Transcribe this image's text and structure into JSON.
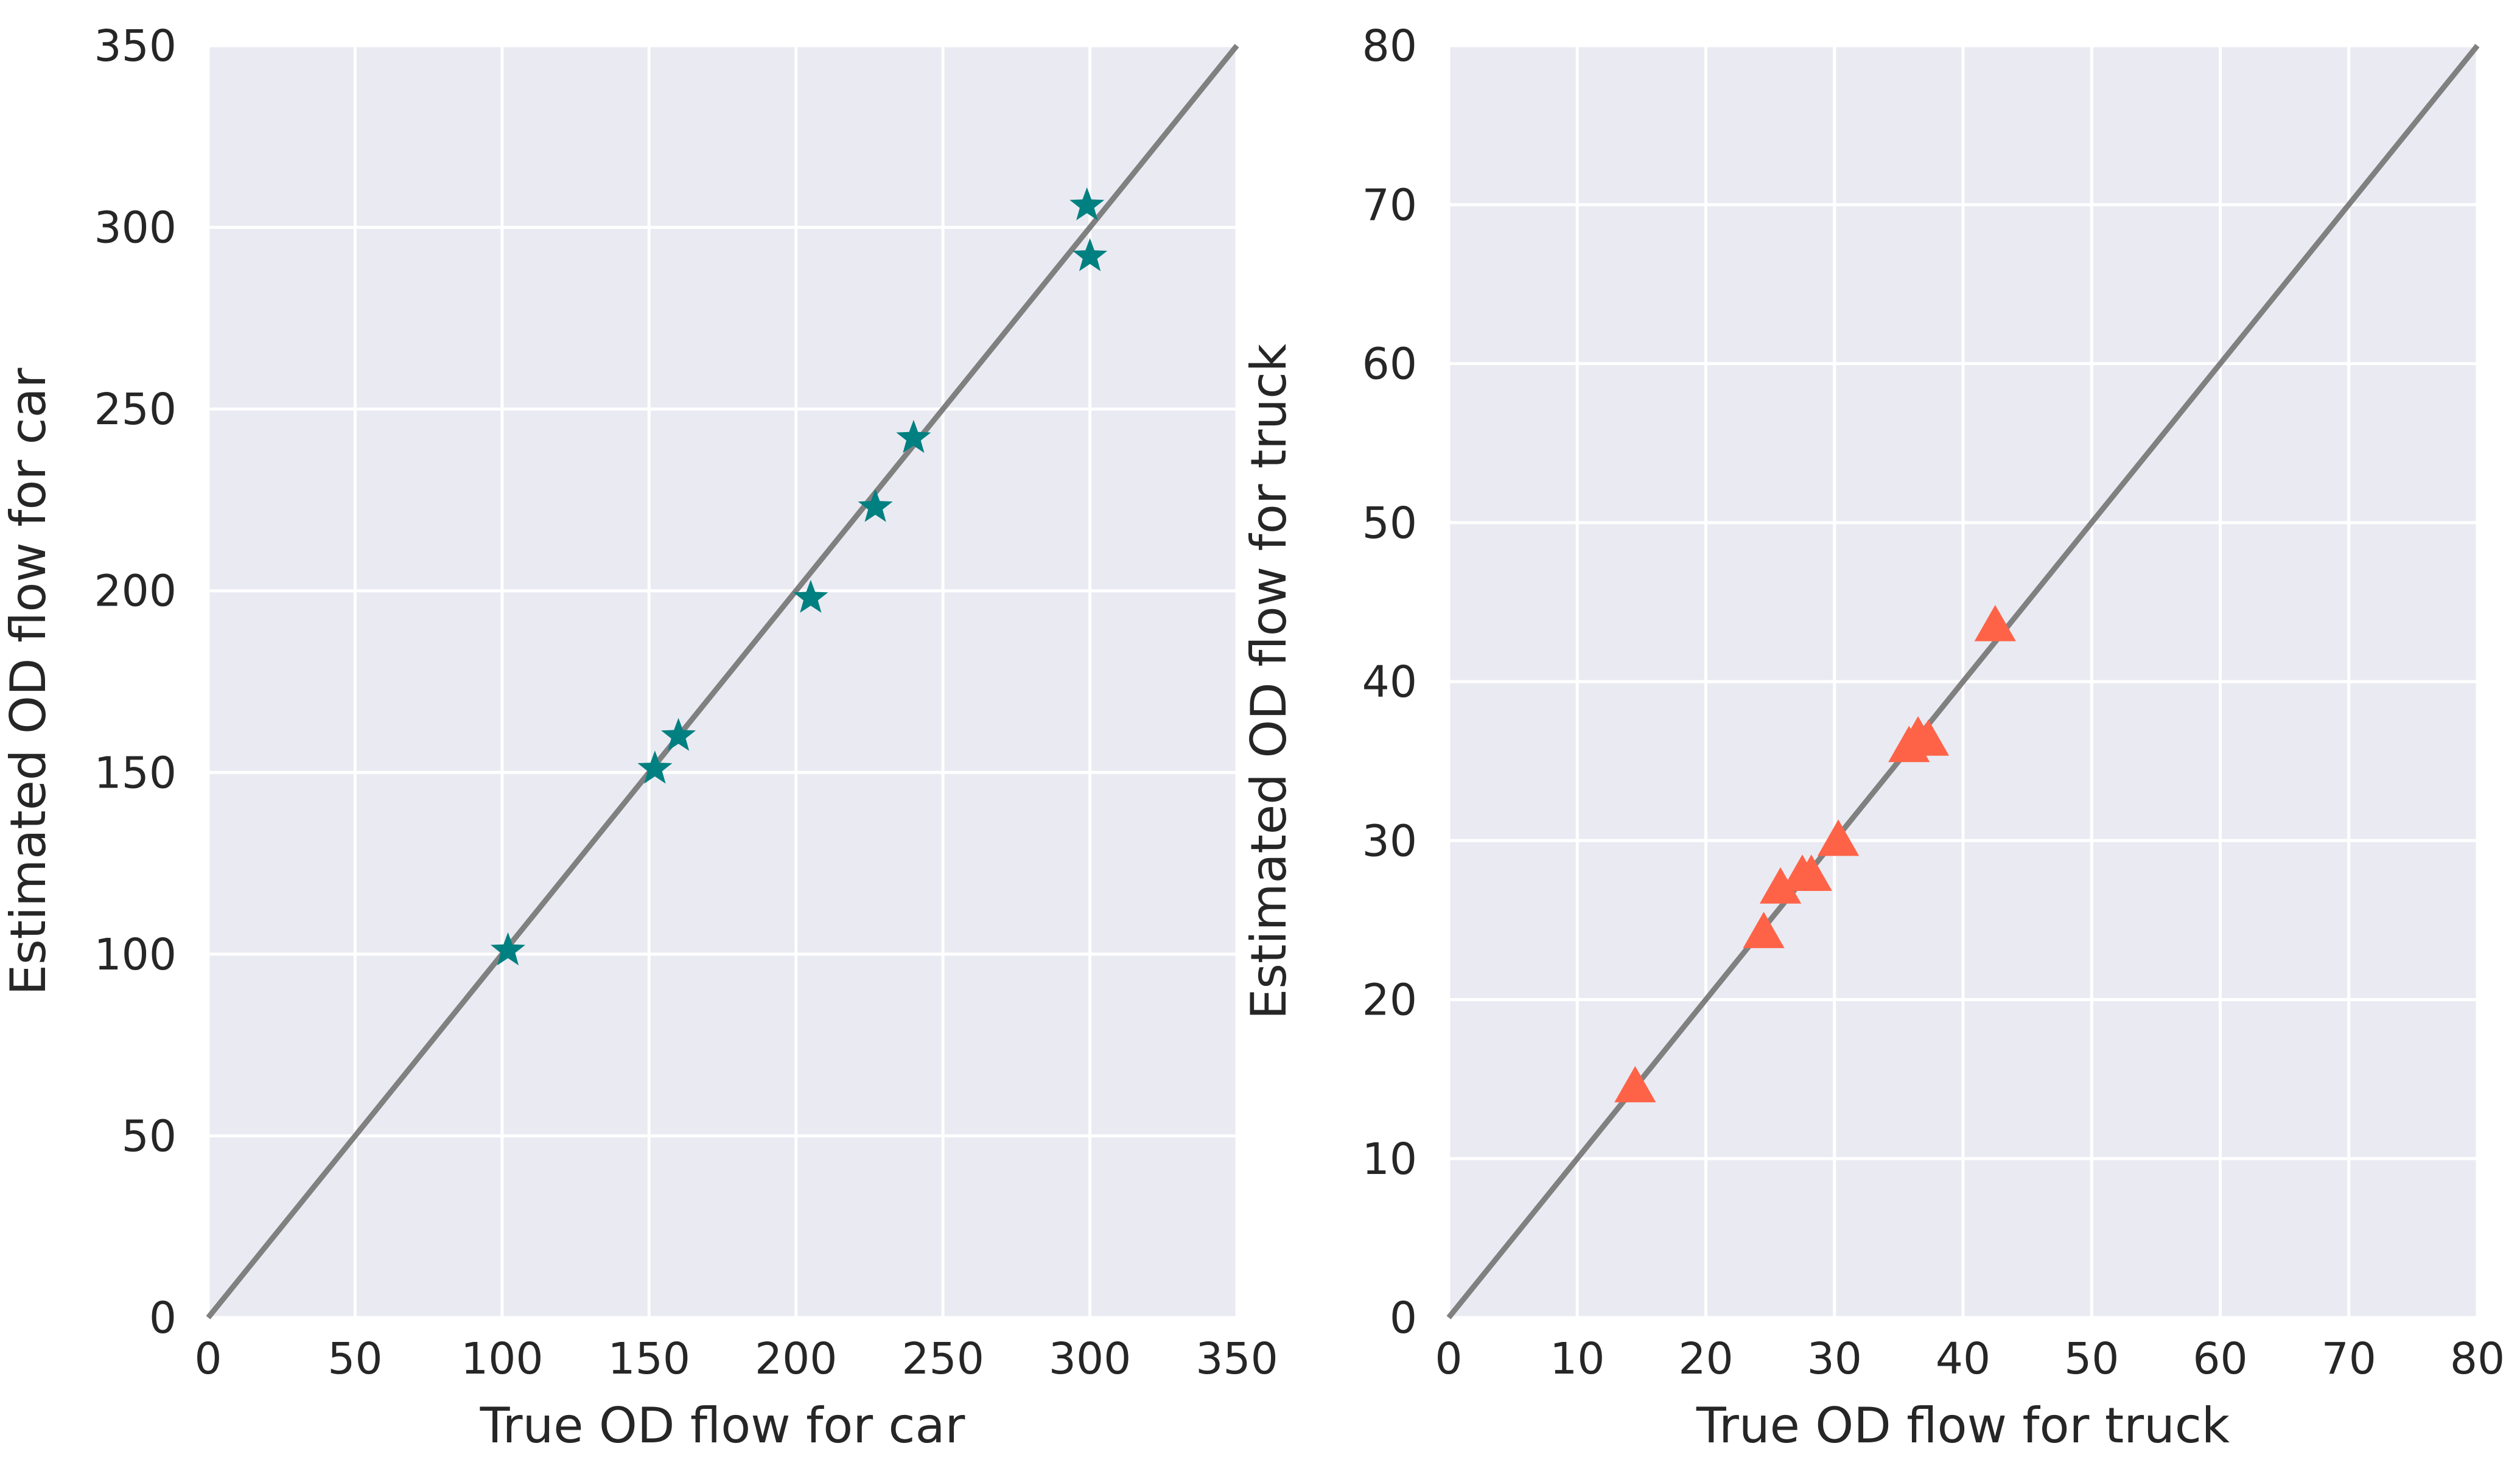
{
  "chart_data": [
    {
      "type": "scatter",
      "title": "",
      "xlabel": "True OD flow for car",
      "ylabel": "Estimated OD flow for car",
      "xlim": [
        0,
        350
      ],
      "ylim": [
        0,
        350
      ],
      "xticks": [
        0,
        50,
        100,
        150,
        200,
        250,
        300,
        350
      ],
      "yticks": [
        0,
        50,
        100,
        150,
        200,
        250,
        300,
        350
      ],
      "grid": true,
      "marker": "star",
      "marker_color": "#008080",
      "reference_line": {
        "x": [
          0,
          350
        ],
        "y": [
          0,
          350
        ],
        "color": "#808080"
      },
      "series": [
        {
          "x": [
            102,
            152,
            160,
            205,
            227,
            240,
            299,
            300
          ],
          "y": [
            101,
            151,
            160,
            198,
            223,
            242,
            306,
            292
          ]
        }
      ]
    },
    {
      "type": "scatter",
      "title": "",
      "xlabel": "True OD flow for truck",
      "ylabel": "Estimated OD flow for truck",
      "xlim": [
        0,
        80
      ],
      "ylim": [
        0,
        80
      ],
      "xticks": [
        0,
        10,
        20,
        30,
        40,
        50,
        60,
        70,
        80
      ],
      "yticks": [
        0,
        10,
        20,
        30,
        40,
        50,
        60,
        70,
        80
      ],
      "grid": true,
      "marker": "triangle",
      "marker_color": "#ff6347",
      "reference_line": {
        "x": [
          0,
          80
        ],
        "y": [
          0,
          80
        ],
        "color": "#808080"
      },
      "series": [
        {
          "x": [
            14.5,
            24.5,
            25.8,
            27.5,
            28.2,
            30.3,
            35.8,
            36.5,
            37.3,
            42.5
          ],
          "y": [
            14.5,
            24.2,
            27.0,
            27.8,
            27.8,
            30.0,
            35.9,
            36.5,
            36.3,
            43.5
          ]
        }
      ]
    }
  ]
}
